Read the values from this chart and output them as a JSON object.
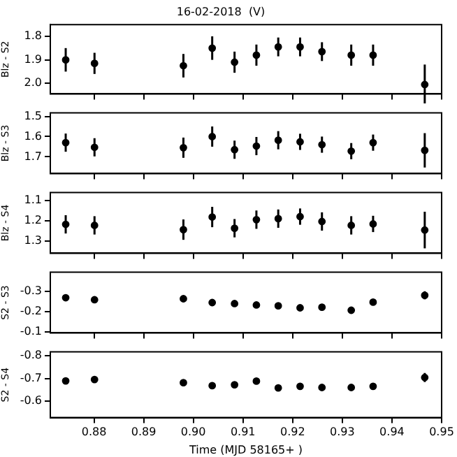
{
  "chart_data": [
    {
      "type": "scatter",
      "title": "16-02-2018  (V)",
      "ylabel": "Blz - S2",
      "x": [
        0.8743,
        0.8801,
        0.898,
        0.9038,
        0.9083,
        0.9127,
        0.9171,
        0.9215,
        0.9259,
        0.9318,
        0.9362,
        0.9466
      ],
      "values": [
        1.9,
        1.915,
        1.925,
        1.85,
        1.91,
        1.88,
        1.845,
        1.845,
        1.865,
        1.88,
        1.88,
        2.005
      ],
      "errors": [
        0.05,
        0.045,
        0.05,
        0.05,
        0.045,
        0.045,
        0.04,
        0.04,
        0.04,
        0.045,
        0.045,
        0.085
      ],
      "color": "#000000",
      "marker": "circle",
      "xlim": [
        0.8712,
        0.95
      ],
      "xticks": [
        0.88,
        0.89,
        0.9,
        0.91,
        0.92,
        0.93,
        0.94,
        0.95
      ],
      "ylim": [
        2.045,
        1.75
      ],
      "yticks": [
        1.8,
        1.9,
        {
          "value": 2,
          "label": "2.0"
        }
      ],
      "tick_labels": "y"
    },
    {
      "type": "scatter",
      "ylabel": "Blz - S3",
      "x": [
        0.8743,
        0.8801,
        0.898,
        0.9038,
        0.9083,
        0.9127,
        0.9171,
        0.9215,
        0.9259,
        0.9318,
        0.9362,
        0.9466
      ],
      "values": [
        1.63,
        1.653,
        1.655,
        1.6,
        1.665,
        1.647,
        1.618,
        1.626,
        1.64,
        1.672,
        1.63,
        1.668
      ],
      "errors": [
        0.045,
        0.045,
        0.05,
        0.05,
        0.045,
        0.045,
        0.045,
        0.04,
        0.04,
        0.04,
        0.04,
        0.085
      ],
      "color": "#000000",
      "marker": "circle",
      "xlim": [
        0.8712,
        0.95
      ],
      "xticks": [
        0.88,
        0.89,
        0.9,
        0.91,
        0.92,
        0.93,
        0.94,
        0.95
      ],
      "ylim": [
        1.783,
        1.483
      ],
      "yticks": [
        1.5,
        1.6,
        1.7
      ],
      "tick_labels": "y"
    },
    {
      "type": "scatter",
      "ylabel": "Blz - S4",
      "x": [
        0.8743,
        0.8801,
        0.898,
        0.9038,
        0.9083,
        0.9127,
        0.9171,
        0.9215,
        0.9259,
        0.9318,
        0.9362,
        0.9466
      ],
      "values": [
        1.218,
        1.223,
        1.244,
        1.182,
        1.237,
        1.195,
        1.19,
        1.18,
        1.204,
        1.223,
        1.216,
        1.246
      ],
      "errors": [
        0.045,
        0.045,
        0.05,
        0.05,
        0.045,
        0.045,
        0.045,
        0.04,
        0.045,
        0.045,
        0.04,
        0.09
      ],
      "color": "#000000",
      "marker": "circle",
      "xlim": [
        0.8712,
        0.95
      ],
      "xticks": [
        0.88,
        0.89,
        0.9,
        0.91,
        0.92,
        0.93,
        0.94,
        0.95
      ],
      "ylim": [
        1.36,
        1.062
      ],
      "yticks": [
        1.1,
        1.2,
        1.3
      ],
      "tick_labels": "y"
    },
    {
      "type": "scatter",
      "ylabel": "S2 - S3",
      "x": [
        0.8743,
        0.8801,
        0.898,
        0.9038,
        0.9083,
        0.9127,
        0.9171,
        0.9215,
        0.9259,
        0.9318,
        0.9362,
        0.9466
      ],
      "values": [
        -0.269,
        -0.259,
        -0.264,
        -0.245,
        -0.24,
        -0.233,
        -0.229,
        -0.219,
        -0.222,
        -0.207,
        -0.247,
        -0.281
      ],
      "errors": [
        0.01,
        0.01,
        0.01,
        0.01,
        0.01,
        0.01,
        0.01,
        0.01,
        0.01,
        0.01,
        0.01,
        0.02
      ],
      "color": "#000000",
      "marker": "circle",
      "xlim": [
        0.8712,
        0.95
      ],
      "xticks": [
        0.88,
        0.89,
        0.9,
        0.91,
        0.92,
        0.93,
        0.94,
        0.95
      ],
      "ylim": [
        -0.095,
        -0.395
      ],
      "yticks": [
        -0.3,
        -0.2,
        -0.1
      ],
      "tick_labels": "y"
    },
    {
      "type": "scatter",
      "xlabel": "Time (MJD 58165+ )",
      "ylabel": "S2 - S4",
      "x": [
        0.8743,
        0.8801,
        0.898,
        0.9038,
        0.9083,
        0.9127,
        0.9171,
        0.9215,
        0.9259,
        0.9318,
        0.9362,
        0.9466
      ],
      "values": [
        -0.689,
        -0.695,
        -0.681,
        -0.668,
        -0.672,
        -0.688,
        -0.658,
        -0.665,
        -0.66,
        -0.66,
        -0.665,
        -0.704
      ],
      "errors": [
        0.01,
        0.01,
        0.01,
        0.01,
        0.01,
        0.01,
        0.01,
        0.01,
        0.01,
        0.01,
        0.01,
        0.02
      ],
      "color": "#000000",
      "marker": "circle",
      "xlim": [
        0.8712,
        0.95
      ],
      "xticks": [
        0.88,
        0.89,
        {
          "value": 0.9,
          "label": "0.90"
        },
        0.91,
        0.92,
        0.93,
        0.94,
        0.95
      ],
      "ylim": [
        -0.527,
        -0.817
      ],
      "yticks": [
        -0.8,
        -0.7,
        -0.6
      ]
    }
  ]
}
